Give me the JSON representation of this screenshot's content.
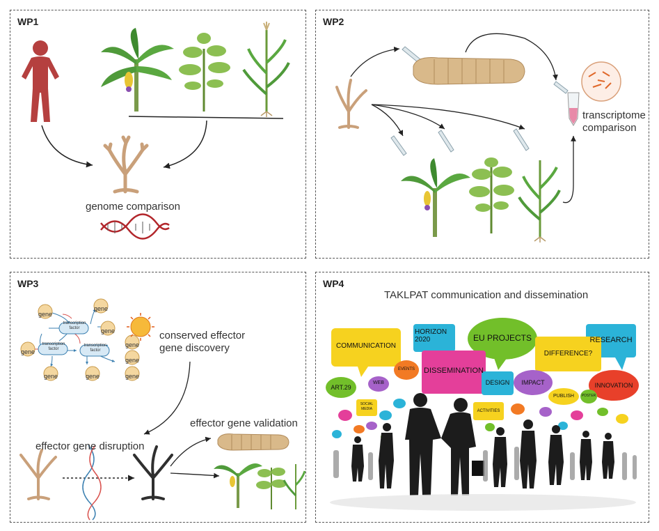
{
  "panels": {
    "wp1": {
      "label": "WP1",
      "caption": "genome comparison"
    },
    "wp2": {
      "label": "WP2",
      "caption_line1": "transcriptome",
      "caption_line2": "comparison"
    },
    "wp3": {
      "label": "WP3",
      "discovery_line1": "conserved effector",
      "discovery_line2": "gene discovery",
      "validation": "effector gene validation",
      "disruption": "effector gene disruption",
      "network": {
        "gene_label": "gene",
        "tf_line1": "transcription",
        "tf_line2": "factor"
      }
    },
    "wp4": {
      "label": "WP4",
      "title": "TAKLPAT communication and dissemination",
      "bubbles": {
        "communication": "COMMUNICATION",
        "horizon": "HORIZON 2020",
        "eu_projects": "EU PROJECTS",
        "research": "RESEARCH",
        "difference": "DIFFERENCE?",
        "dissemination": "DISSEMINATION",
        "events": "EVENTS",
        "web": "WEB",
        "art29": "ART.29",
        "design": "DESIGN",
        "impact": "IMPACT",
        "publish": "PUBLISH",
        "innovation": "INNOVATION",
        "poster": "POSTER",
        "social_media": "SOCIAL MEDIA",
        "activities": "ACTIVITIES"
      }
    }
  },
  "colors": {
    "human": "#b5403f",
    "fungus": "#c9a07a",
    "fungus_dark": "#2f2f2f",
    "plant_green": "#4f9a3a",
    "larva": "#d9b98a",
    "dna_red": "#b2262b",
    "arrow": "#222222",
    "bubble_yellow": "#f6d21f",
    "bubble_blue": "#2bb3d8",
    "bubble_green": "#72bf2a",
    "bubble_pink": "#e43f9a",
    "bubble_orange": "#f27a24",
    "bubble_purple": "#a662c9",
    "bubble_red": "#e8402a"
  }
}
